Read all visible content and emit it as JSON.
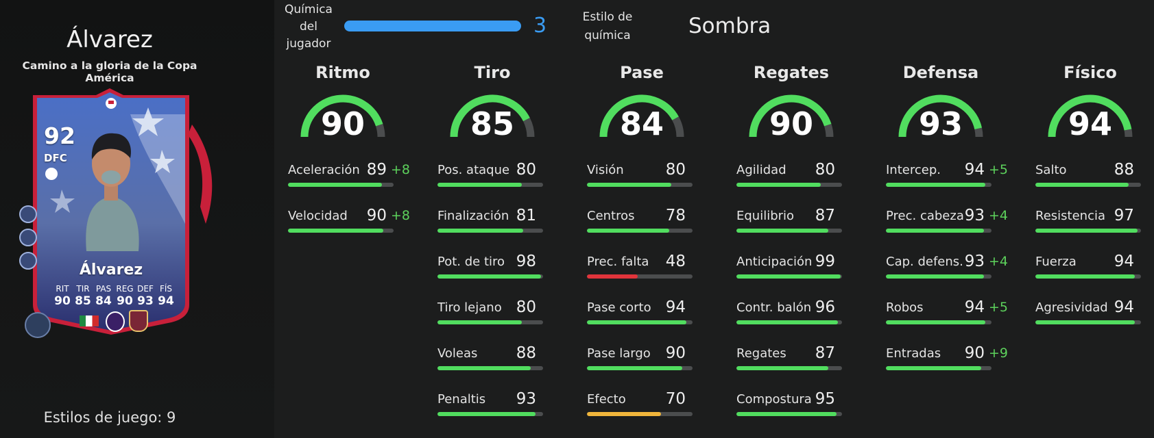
{
  "player": {
    "name": "Álvarez",
    "subtitle": "Camino a la gloria de la Copa América",
    "playstyles_label": "Estilos de juego: 9"
  },
  "card": {
    "rating": "92",
    "position": "DFC",
    "name": "Álvarez",
    "stats": [
      {
        "abbr": "RIT",
        "value": "90"
      },
      {
        "abbr": "TIR",
        "value": "85"
      },
      {
        "abbr": "PAS",
        "value": "84"
      },
      {
        "abbr": "REG",
        "value": "90"
      },
      {
        "abbr": "DEF",
        "value": "93"
      },
      {
        "abbr": "FÍS",
        "value": "94"
      }
    ],
    "nation_flag": "mexico-flag-icon",
    "league_badge": "premier-league-icon",
    "club_badge": "west-ham-crest-icon"
  },
  "chemistry": {
    "label": "Química del jugador",
    "value": "3",
    "max": 3,
    "style_label": "Estilo de química",
    "style_value": "Sombra"
  },
  "colors": {
    "accent": "#3a9cf3",
    "good": "#51dd5f",
    "bonus": "#5dd25c",
    "poor": "#e0343b",
    "average": "#f0b53b",
    "track": "#4b4d4e"
  },
  "categories": [
    {
      "name": "Ritmo",
      "value": "90",
      "stats": [
        {
          "label": "Aceleración",
          "value": "89",
          "bonus": "+8"
        },
        {
          "label": "Velocidad",
          "value": "90",
          "bonus": "+8"
        }
      ]
    },
    {
      "name": "Tiro",
      "value": "85",
      "stats": [
        {
          "label": "Pos. ataque",
          "value": "80",
          "bonus": ""
        },
        {
          "label": "Finalización",
          "value": "81",
          "bonus": ""
        },
        {
          "label": "Pot. de tiro",
          "value": "98",
          "bonus": ""
        },
        {
          "label": "Tiro lejano",
          "value": "80",
          "bonus": ""
        },
        {
          "label": "Voleas",
          "value": "88",
          "bonus": ""
        },
        {
          "label": "Penaltis",
          "value": "93",
          "bonus": ""
        }
      ]
    },
    {
      "name": "Pase",
      "value": "84",
      "stats": [
        {
          "label": "Visión",
          "value": "80",
          "bonus": ""
        },
        {
          "label": "Centros",
          "value": "78",
          "bonus": ""
        },
        {
          "label": "Prec. falta",
          "value": "48",
          "bonus": ""
        },
        {
          "label": "Pase corto",
          "value": "94",
          "bonus": ""
        },
        {
          "label": "Pase largo",
          "value": "90",
          "bonus": ""
        },
        {
          "label": "Efecto",
          "value": "70",
          "bonus": ""
        }
      ]
    },
    {
      "name": "Regates",
      "value": "90",
      "stats": [
        {
          "label": "Agilidad",
          "value": "80",
          "bonus": ""
        },
        {
          "label": "Equilibrio",
          "value": "87",
          "bonus": ""
        },
        {
          "label": "Anticipación",
          "value": "99",
          "bonus": ""
        },
        {
          "label": "Contr. balón",
          "value": "96",
          "bonus": ""
        },
        {
          "label": "Regates",
          "value": "87",
          "bonus": ""
        },
        {
          "label": "Compostura",
          "value": "95",
          "bonus": ""
        }
      ]
    },
    {
      "name": "Defensa",
      "value": "93",
      "stats": [
        {
          "label": "Intercep.",
          "value": "94",
          "bonus": "+5"
        },
        {
          "label": "Prec. cabeza",
          "value": "93",
          "bonus": "+4"
        },
        {
          "label": "Cap. defens.",
          "value": "93",
          "bonus": "+4"
        },
        {
          "label": "Robos",
          "value": "94",
          "bonus": "+5"
        },
        {
          "label": "Entradas",
          "value": "90",
          "bonus": "+9"
        }
      ]
    },
    {
      "name": "Físico",
      "value": "94",
      "stats": [
        {
          "label": "Salto",
          "value": "88",
          "bonus": ""
        },
        {
          "label": "Resistencia",
          "value": "97",
          "bonus": ""
        },
        {
          "label": "Fuerza",
          "value": "94",
          "bonus": ""
        },
        {
          "label": "Agresividad",
          "value": "94",
          "bonus": ""
        }
      ]
    }
  ]
}
